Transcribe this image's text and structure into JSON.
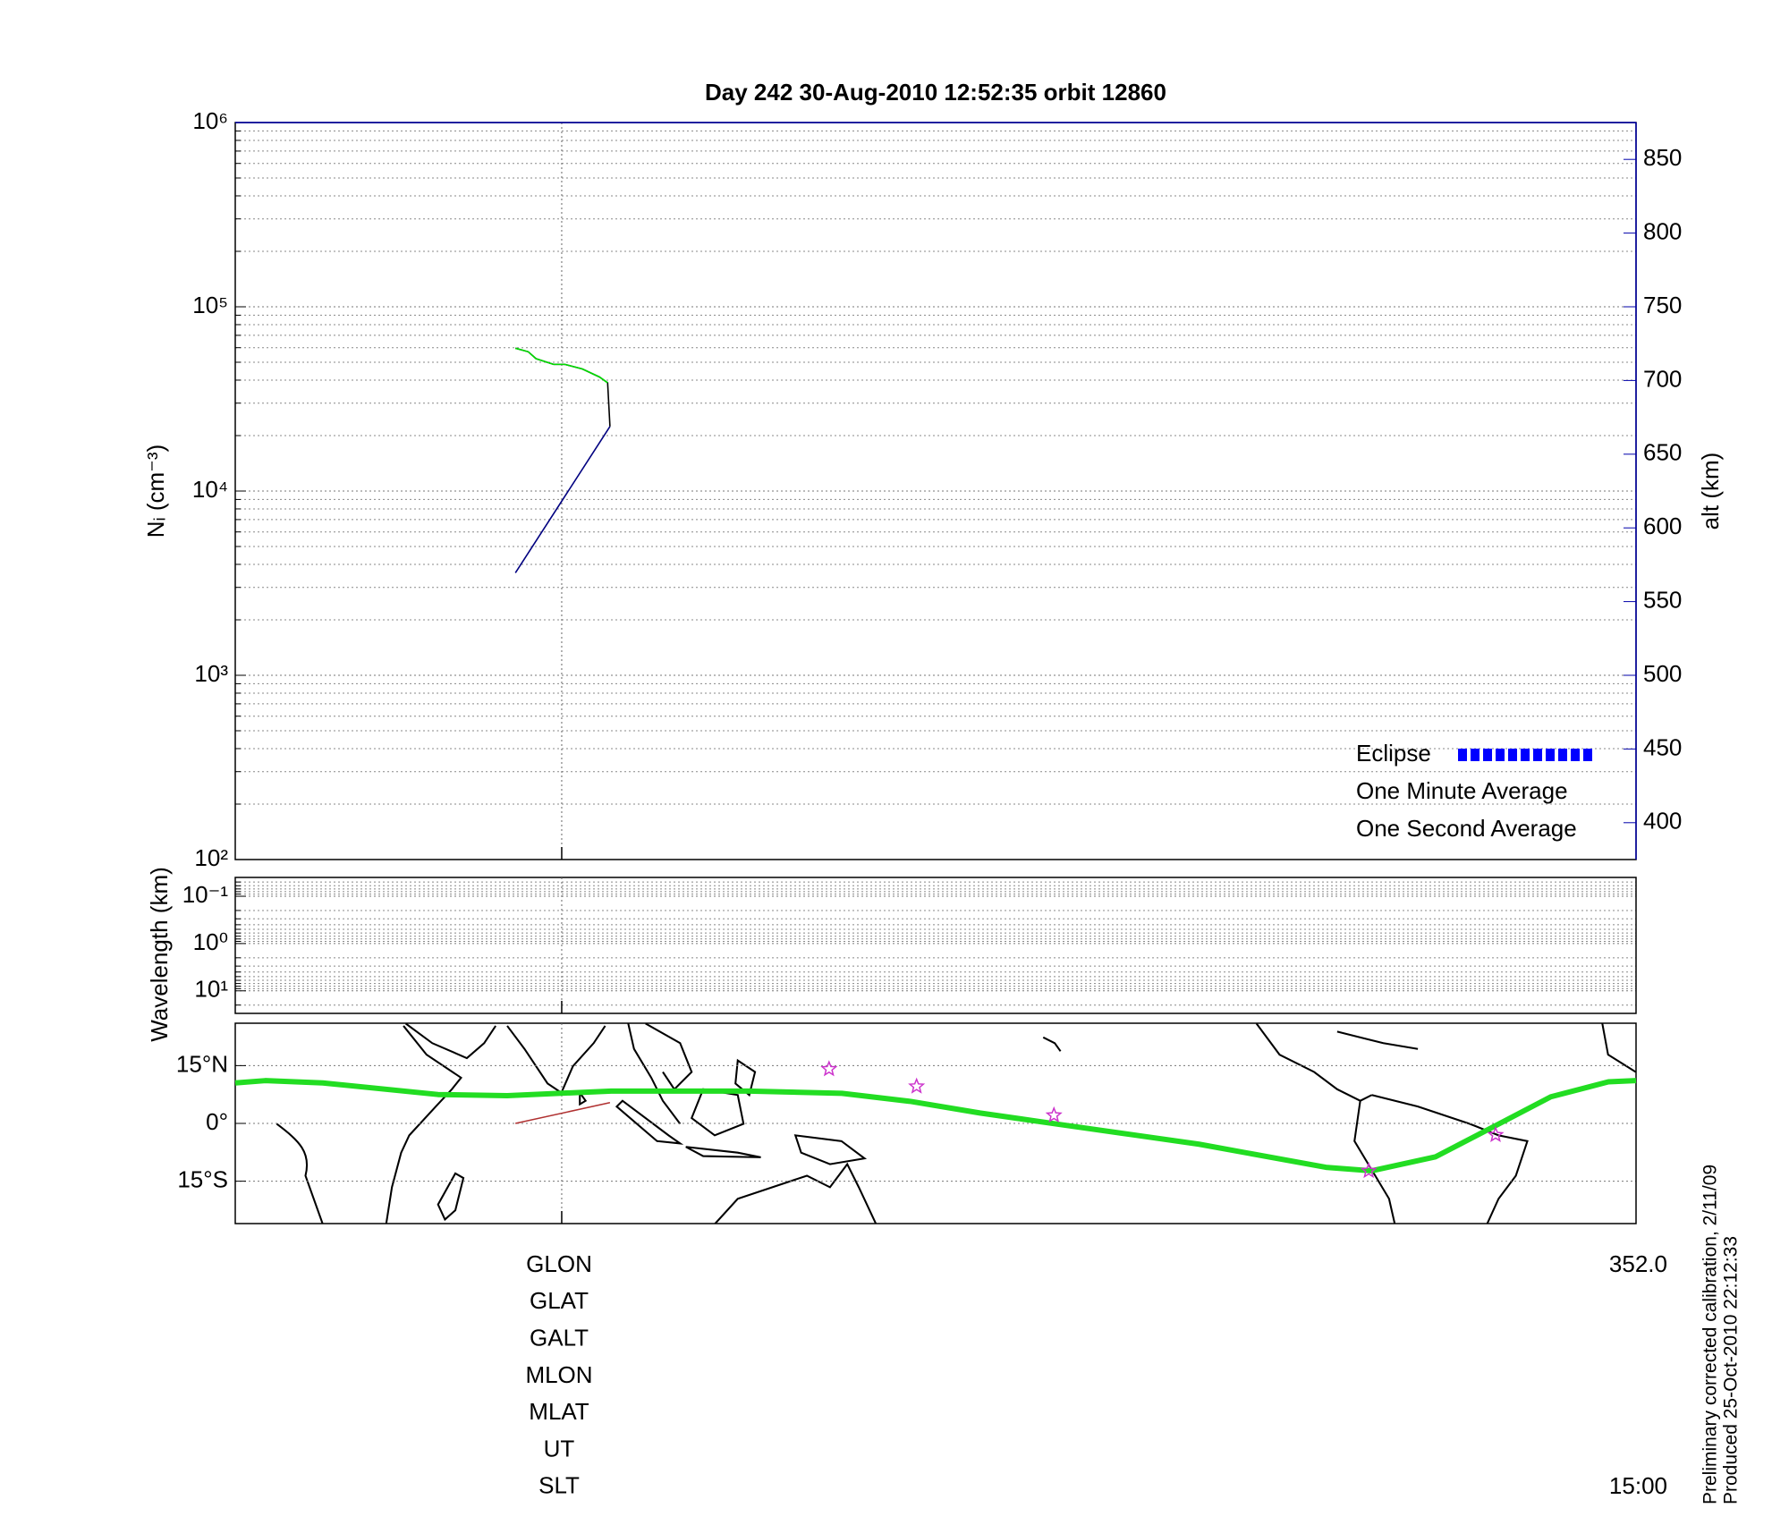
{
  "title": "Day 242  30-Aug-2010 12:52:35   orbit 12860",
  "cursor_x": 75.9,
  "chart_data": [
    {
      "type": "line",
      "ylabel": "Nᵢ (cm⁻³)",
      "y2label": "alt (km)",
      "xlim": [
        -8,
        352
      ],
      "ylog": true,
      "ylim": [
        100,
        1000000
      ],
      "yticks": [
        {
          "value": 100,
          "label": "10²"
        },
        {
          "value": 1000,
          "label": "10³"
        },
        {
          "value": 10000,
          "label": "10⁴"
        },
        {
          "value": 100000,
          "label": "10⁵"
        },
        {
          "value": 1000000,
          "label": "10⁶"
        }
      ],
      "yminor": [
        200,
        300,
        400,
        500,
        600,
        700,
        800,
        900,
        2000,
        3000,
        4000,
        5000,
        6000,
        7000,
        8000,
        9000,
        20000,
        30000,
        40000,
        50000,
        60000,
        70000,
        80000,
        90000,
        200000,
        300000,
        400000,
        500000,
        600000,
        700000,
        800000,
        900000
      ],
      "grid": true,
      "y2lim": [
        375,
        875
      ],
      "y2ticks": [
        400,
        450,
        500,
        550,
        600,
        650,
        700,
        750,
        800,
        850
      ],
      "series": [
        {
          "name": "Eclipse",
          "color": "#0000ff",
          "x": [],
          "values": []
        },
        {
          "name": "One Minute Average",
          "color": "#000000",
          "x": [
            64.0,
            67.3,
            69.3,
            73.8,
            76.7,
            81.2,
            85.6,
            87.7,
            88.3
          ],
          "values": [
            59600,
            57000,
            52300,
            48700,
            48700,
            46000,
            41600,
            38700,
            22400
          ]
        },
        {
          "name": "One Second Average",
          "color": "#00dd00",
          "x": [
            64.0,
            67.3,
            69.3,
            73.8,
            76.7,
            81.2,
            85.6,
            87.7
          ],
          "values": [
            59600,
            57000,
            52300,
            48700,
            48700,
            46000,
            41600,
            38700
          ]
        },
        {
          "color": "#000080",
          "axis": "y2",
          "x": [
            64.0,
            88.3
          ],
          "values": [
            569.5,
            668.8
          ]
        }
      ]
    },
    {
      "type": "grid",
      "ylabel": "Wavelength (km)",
      "xlim": [
        -8,
        352
      ],
      "ylog": true,
      "inverted": true,
      "ylim": [
        0.04,
        30
      ],
      "yticks": [
        {
          "value": 0.1,
          "label": "10⁻¹"
        },
        {
          "value": 1,
          "label": "10⁰"
        },
        {
          "value": 10,
          "label": "10¹"
        }
      ],
      "yminor": [
        0.05,
        0.06,
        0.07,
        0.08,
        0.09,
        0.2,
        0.3,
        0.4,
        0.5,
        0.6,
        0.7,
        0.8,
        0.9,
        2,
        3,
        4,
        5,
        6,
        7,
        8,
        9,
        20,
        30
      ],
      "grid": true
    },
    {
      "type": "map",
      "xlim": [
        -8,
        352
      ],
      "ylim": [
        -26,
        26
      ],
      "yticks": [
        {
          "value": -15,
          "label": "15°S"
        },
        {
          "value": 0,
          "label": "0°"
        },
        {
          "value": 15,
          "label": "15°N"
        }
      ],
      "grid": true,
      "track": {
        "color": "#22dd22",
        "x": [
          -8,
          -0.3,
          14.5,
          44.1,
          61.9,
          88.6,
          124.1,
          147.9,
          165.6,
          183.4,
          204.1,
          239.7,
          272.3,
          284.1,
          300.4,
          315.3,
          330.1,
          344.9,
          352
        ],
        "values": [
          10.5,
          11.1,
          10.5,
          7.5,
          7.2,
          8.4,
          8.4,
          7.8,
          5.7,
          2.7,
          -0.3,
          -5.4,
          -11.4,
          -12.3,
          -8.7,
          -0.9,
          6.9,
          10.8,
          11.1
        ]
      },
      "segment": {
        "color": "#b03030",
        "x": [
          64.0,
          88.3
        ],
        "values": [
          0,
          5.4
        ]
      },
      "stars": {
        "color": "#cc33cc",
        "x": [
          144.6,
          167.1,
          202.4,
          283.3,
          315.9
        ],
        "values": [
          14.1,
          9.6,
          2.1,
          -12.3,
          -3.0
        ]
      }
    }
  ],
  "footer": {
    "rows": [
      "GLON",
      "GLAT",
      "GALT",
      "MLON",
      "MLAT",
      "UT",
      "SLT"
    ],
    "glon_value": "352.0",
    "slt_value": "15:00"
  },
  "notes": [
    "Preliminary corrected calibration, 2/11/09",
    "Produced 25-Oct-2010 22:12:33"
  ]
}
